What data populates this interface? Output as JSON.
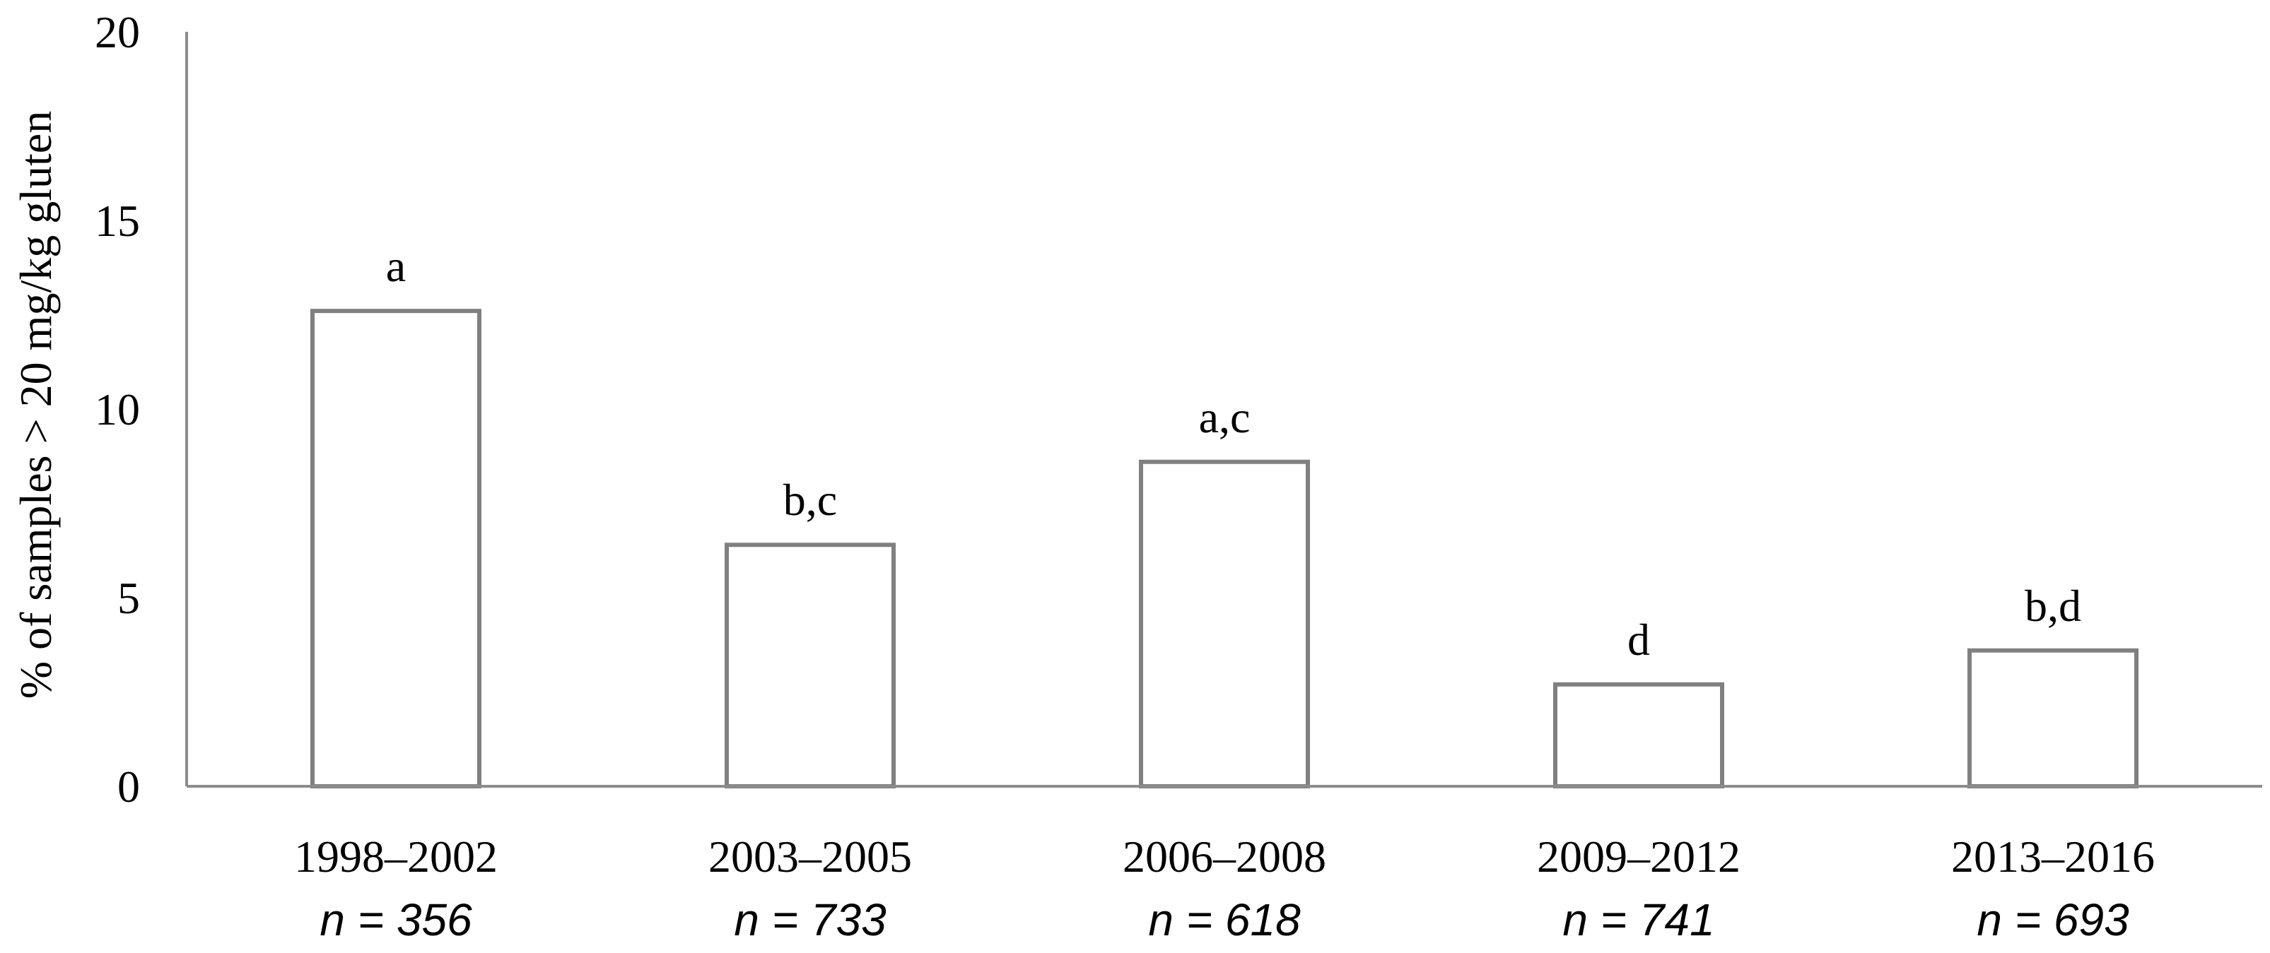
{
  "chart_data": {
    "type": "bar",
    "title": "",
    "xlabel": "",
    "ylabel": "% of samples > 20 mg/kg gluten",
    "ylim": [
      0,
      20
    ],
    "yticks": [
      0,
      5,
      10,
      15,
      20
    ],
    "grid": false,
    "categories": [
      "1998–2002",
      "2003–2005",
      "2006–2008",
      "2009–2012",
      "2013–2016"
    ],
    "sample_sizes": [
      "n = 356",
      "n = 733",
      "n = 618",
      "n = 741",
      "n = 693"
    ],
    "values": [
      12.6,
      6.4,
      8.6,
      2.7,
      3.6
    ],
    "significance_labels": [
      "a",
      "b,c",
      "a,c",
      "d",
      "b,d"
    ],
    "colors": {
      "bar_fill": "#ffffff",
      "bar_stroke": "#808080",
      "axis": "#8c8c8c",
      "text": "#000000"
    }
  }
}
